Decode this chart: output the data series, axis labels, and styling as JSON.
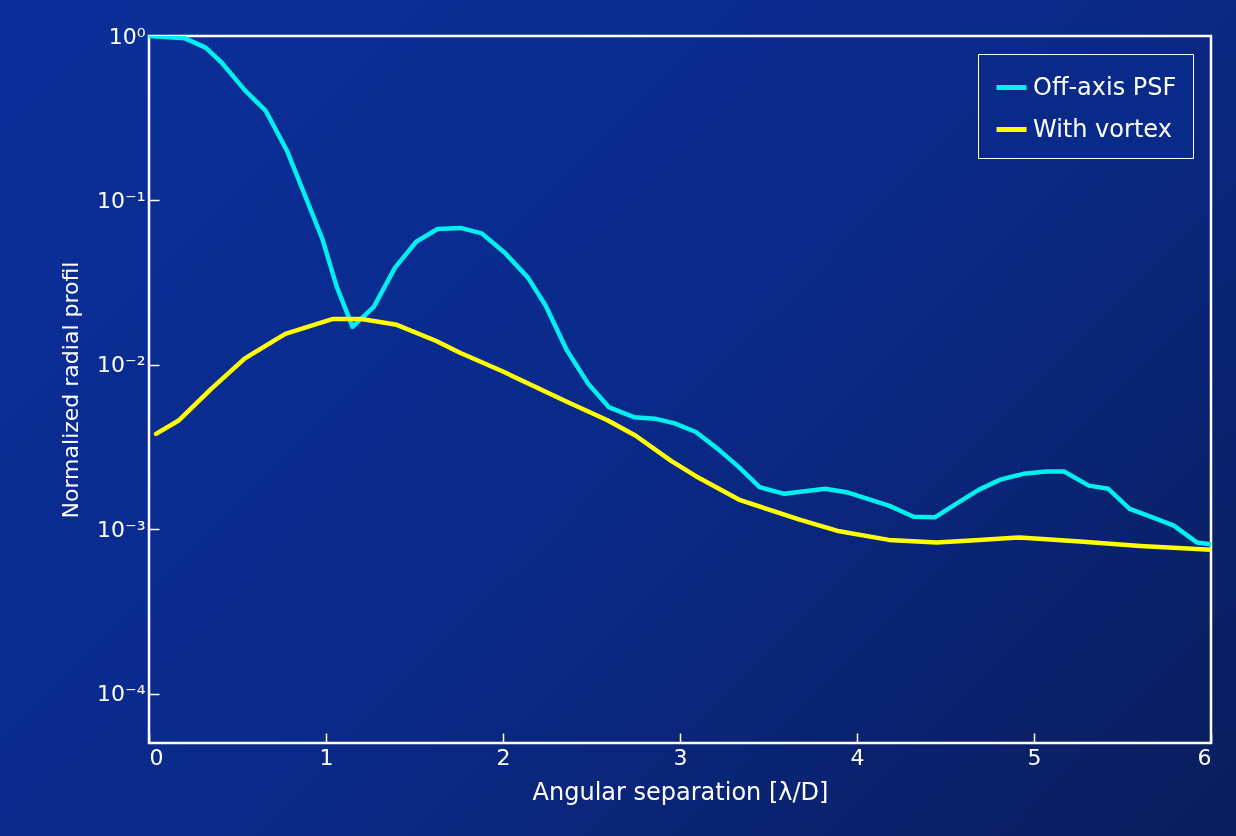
{
  "chart_data": {
    "type": "line",
    "xlabel": "Angular separation [λ/D]",
    "ylabel": "Normalized radial profil",
    "log": "y",
    "grid": false,
    "legend": "top right",
    "marker": "none",
    "line_style": "solid",
    "xlim": [
      0,
      6
    ],
    "xticks": [
      0,
      1,
      2,
      3,
      4,
      5,
      6
    ],
    "ylim": [
      5e-05,
      1
    ],
    "yticks": [
      {
        "value": 1,
        "label": "10⁰"
      },
      {
        "value": 0.1,
        "label": "10⁻¹"
      },
      {
        "value": 0.01,
        "label": "10⁻²"
      },
      {
        "value": 0.001,
        "label": "10⁻³"
      },
      {
        "value": 0.0001,
        "label": "10⁻⁴"
      }
    ],
    "series": [
      {
        "name": "Off-axis PSF",
        "color": "#00f0f0",
        "x": [
          0,
          0.2,
          0.32,
          0.41,
          0.54,
          0.66,
          0.78,
          0.88,
          0.98,
          1.06,
          1.15,
          1.27,
          1.39,
          1.51,
          1.63,
          1.76,
          1.88,
          2.01,
          2.14,
          2.24,
          2.36,
          2.48,
          2.6,
          2.74,
          2.86,
          2.97,
          3.09,
          3.21,
          3.33,
          3.45,
          3.59,
          3.82,
          3.95,
          4.18,
          4.32,
          4.44,
          4.58,
          4.69,
          4.81,
          4.94,
          5.07,
          5.17,
          5.31,
          5.42,
          5.54,
          5.67,
          5.79,
          5.92,
          6
        ],
        "values": [
          1.0,
          0.97,
          0.85,
          0.69,
          0.47,
          0.35,
          0.2,
          0.108,
          0.058,
          0.03,
          0.017,
          0.0225,
          0.039,
          0.056,
          0.067,
          0.068,
          0.063,
          0.048,
          0.034,
          0.023,
          0.0123,
          0.0077,
          0.0055,
          0.0048,
          0.0047,
          0.0044,
          0.0039,
          0.0031,
          0.0024,
          0.0018,
          0.00164,
          0.00176,
          0.00167,
          0.00139,
          0.00119,
          0.00118,
          0.00147,
          0.00174,
          0.002,
          0.00217,
          0.00224,
          0.00224,
          0.00184,
          0.00176,
          0.00133,
          0.00118,
          0.00105,
          0.00083,
          0.00081
        ]
      },
      {
        "name": "With vortex",
        "color": "#ffff00",
        "x": [
          0.04,
          0.17,
          0.35,
          0.54,
          0.77,
          1.04,
          1.2,
          1.4,
          1.62,
          1.76,
          1.99,
          2.37,
          2.59,
          2.75,
          2.95,
          3.09,
          3.34,
          3.68,
          3.9,
          4.18,
          4.45,
          4.69,
          4.92,
          5.26,
          5.6,
          6
        ],
        "values": [
          0.0038,
          0.0046,
          0.0071,
          0.0109,
          0.0154,
          0.019,
          0.019,
          0.0175,
          0.014,
          0.0118,
          0.0092,
          0.0059,
          0.0046,
          0.0037,
          0.0026,
          0.0021,
          0.0015,
          0.00114,
          0.00097,
          0.00086,
          0.00083,
          0.00086,
          0.00089,
          0.00084,
          0.00079,
          0.00075
        ]
      }
    ]
  }
}
